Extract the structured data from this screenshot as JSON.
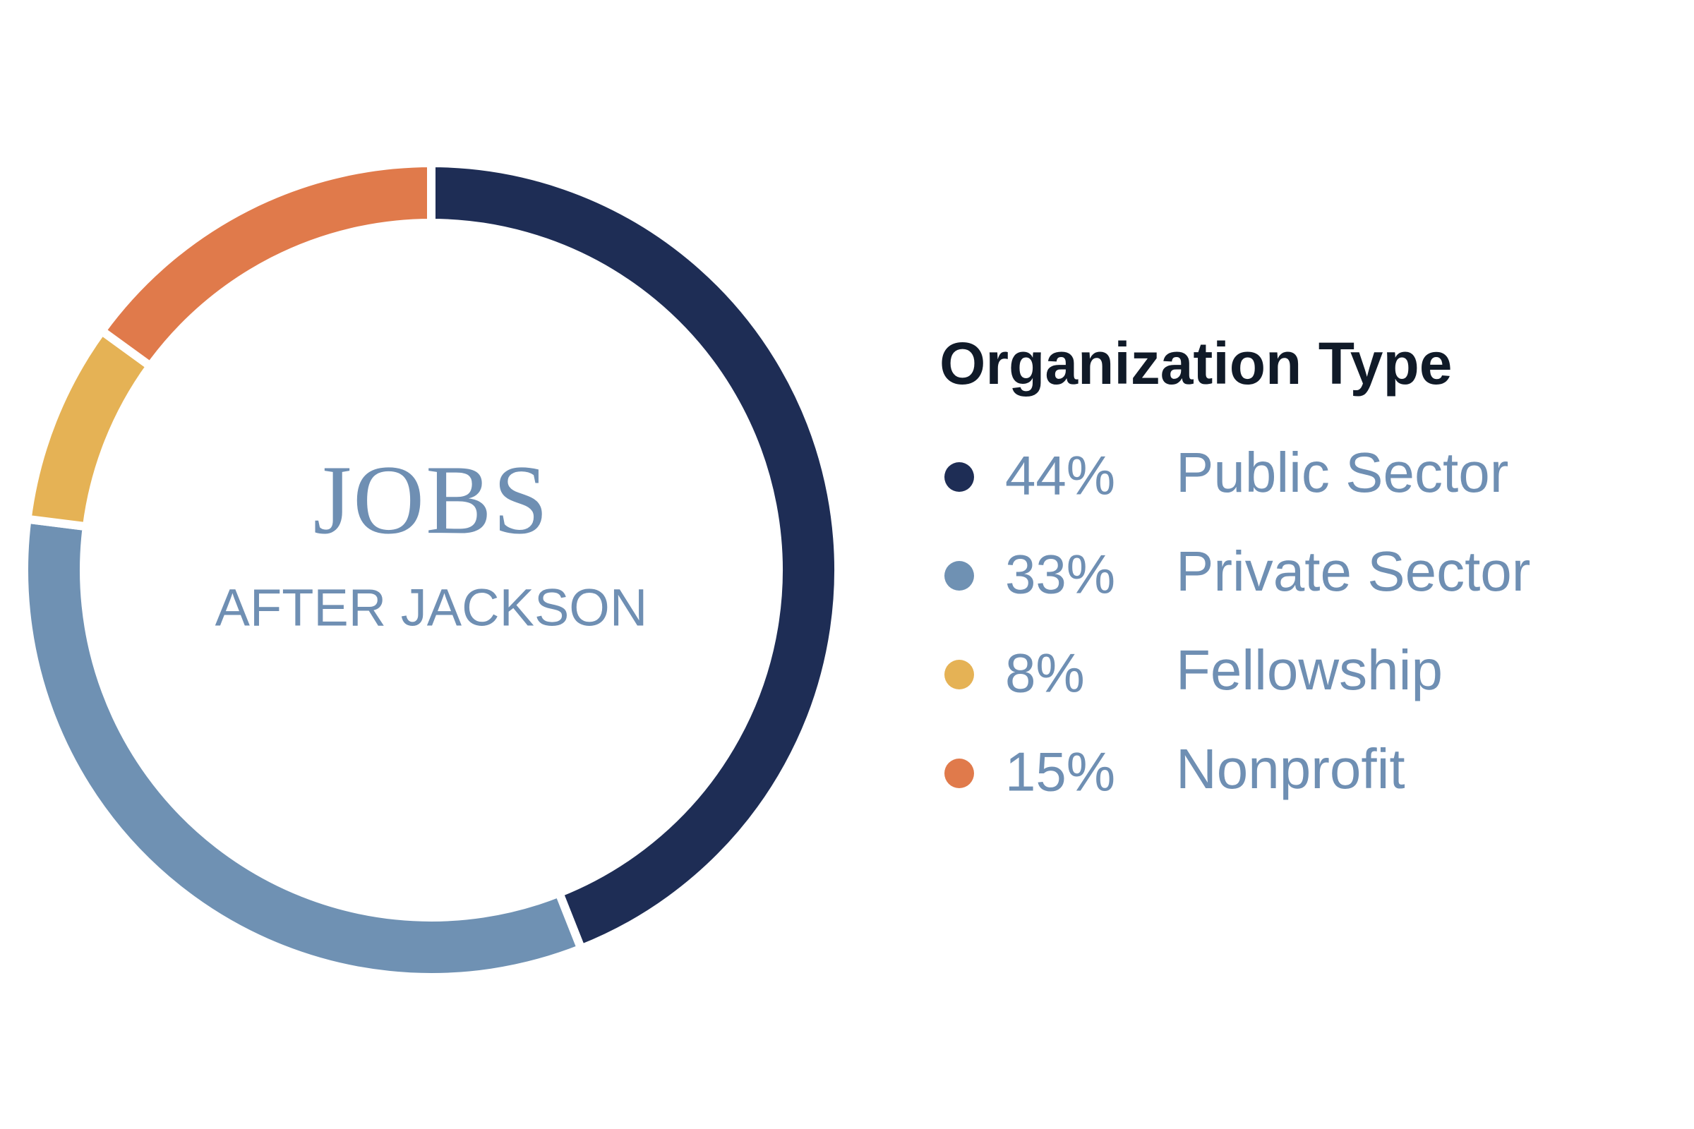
{
  "chart_data": {
    "type": "pie",
    "annotations": [
      "JOBS",
      "AFTER JACKSON"
    ],
    "legend_title": "Organization Type",
    "categories": [
      "Public Sector",
      "Private Sector",
      "Fellowship",
      "Nonprofit"
    ],
    "values": [
      44,
      33,
      8,
      15
    ],
    "value_labels": [
      "44%",
      "33%",
      "8%",
      "15%"
    ],
    "colors": [
      "#1e2d55",
      "#6f91b3",
      "#e5b255",
      "#e07a4b"
    ]
  }
}
